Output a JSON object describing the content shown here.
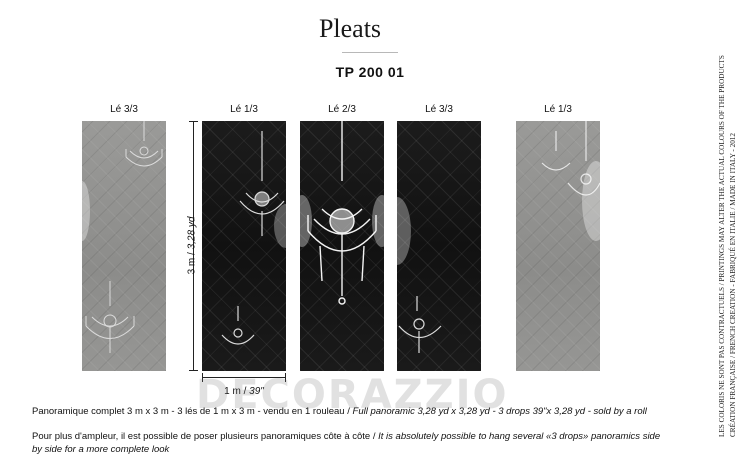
{
  "header": {
    "title": "Pleats",
    "code": "TP 200 01"
  },
  "panels": [
    {
      "label": "Lé 3/3",
      "tone": "grey"
    },
    {
      "label": "Lé 1/3",
      "tone": "dark"
    },
    {
      "label": "Lé 2/3",
      "tone": "dark"
    },
    {
      "label": "Lé 3/3",
      "tone": "dark"
    },
    {
      "label": "Lé 1/3",
      "tone": "grey"
    }
  ],
  "dimensions": {
    "height": "3 m / ",
    "height_it": "3,28 yd",
    "width": "1 m / ",
    "width_it": "39\""
  },
  "notes": {
    "line1_a": "Panoramique complet 3 m x 3 m - 3 lés de 1 m x 3 m  - vendu en 1 rouleau / ",
    "line1_b": "Full panoramic 3,28 yd x 3,28 yd - 3 drops 39\"x 3,28 yd - sold by a roll",
    "line2_a": "Pour plus d'ampleur, il est possible de poser plusieurs panoramiques côte à côte / ",
    "line2_b": "It is absolutely possible to hang several «3 drops» panoramics side by side for a more complete look"
  },
  "watermark": "DECORAZZIO",
  "side": {
    "line1": "LES COLORIS NE SONT PAS CONTRACTUELS / PRINTINGS MAY ALTER THE ACTUAL COLOURS OF THE PRODUCTS",
    "line2": "CRÉATION FRANÇAISE / FRENCH CREATION - FABRIQUÉ EN ITALIE / MADE IN ITALY - 2012"
  },
  "colors": {
    "panel_dark": "#141414",
    "panel_grey": "#92928f",
    "chandelier": "#f2f2f2"
  }
}
